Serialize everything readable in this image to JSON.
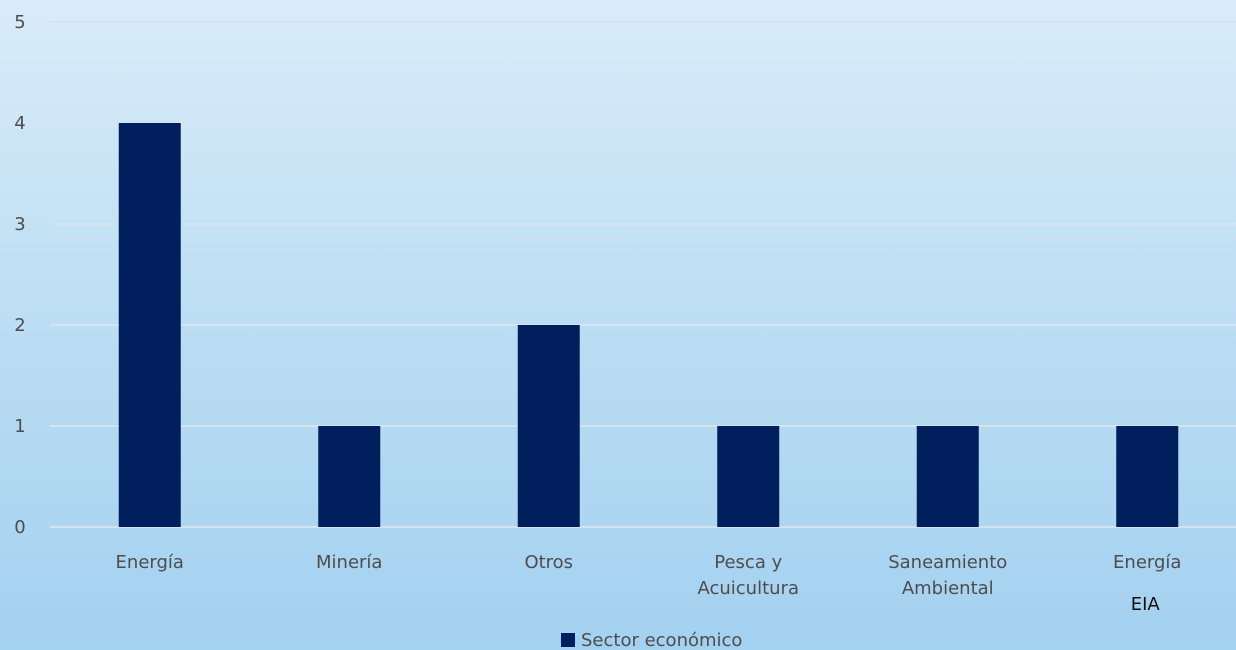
{
  "chart_data": {
    "type": "bar",
    "title": "",
    "xlabel": "",
    "ylabel": "",
    "ylim": [
      0,
      5
    ],
    "yticks": [
      0,
      1,
      2,
      3,
      4,
      5
    ],
    "grid": true,
    "legend_position": "bottom",
    "categories": [
      [
        "Energía"
      ],
      [
        "Minería"
      ],
      [
        "Otros"
      ],
      [
        "Pesca y",
        "Acuicultura"
      ],
      [
        "Saneamiento",
        "Ambiental"
      ],
      [
        "Energía"
      ]
    ],
    "series": [
      {
        "name": "Sector económico",
        "values": [
          4,
          1,
          2,
          1,
          1,
          1
        ],
        "color": "#001f5c"
      }
    ],
    "annotations": [
      {
        "text": "EIA",
        "category_index": 5
      }
    ],
    "colors": {
      "bar": "#001f5c",
      "gridline": "#d6e3ec",
      "axis_text": "#4d4d4d",
      "annotation_text": "#111111"
    }
  }
}
